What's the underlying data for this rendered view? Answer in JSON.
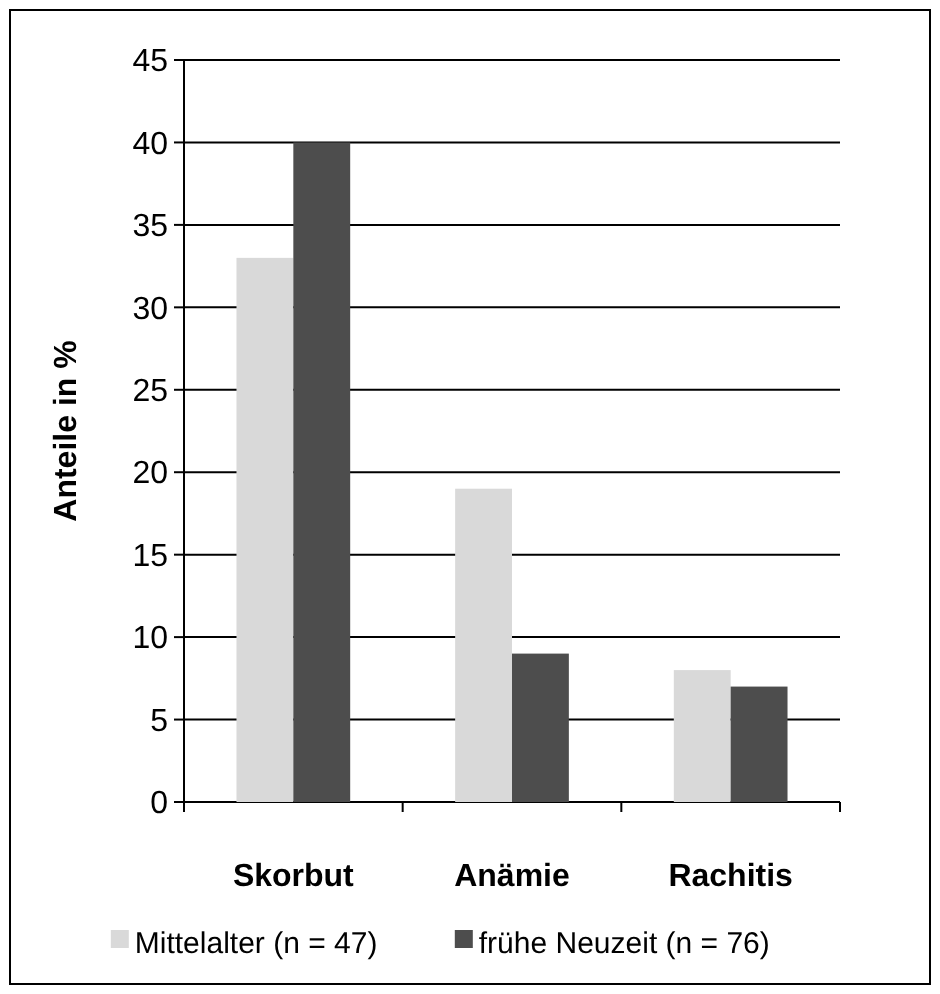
{
  "chart_data": {
    "type": "bar",
    "ylabel": "Anteile in %",
    "categories": [
      "Skorbut",
      "Anämie",
      "Rachitis"
    ],
    "series": [
      {
        "name": "Mittelalter (n = 47)",
        "color": "#d9d9d9",
        "values": [
          33,
          19,
          8
        ]
      },
      {
        "name": "frühe Neuzeit (n = 76)",
        "color": "#4d4d4d",
        "values": [
          40,
          9,
          7
        ]
      }
    ],
    "ylim": [
      0,
      45
    ],
    "yticks": [
      0,
      5,
      10,
      15,
      20,
      25,
      30,
      35,
      40,
      45
    ],
    "grid": "y",
    "legend": "bottom"
  }
}
